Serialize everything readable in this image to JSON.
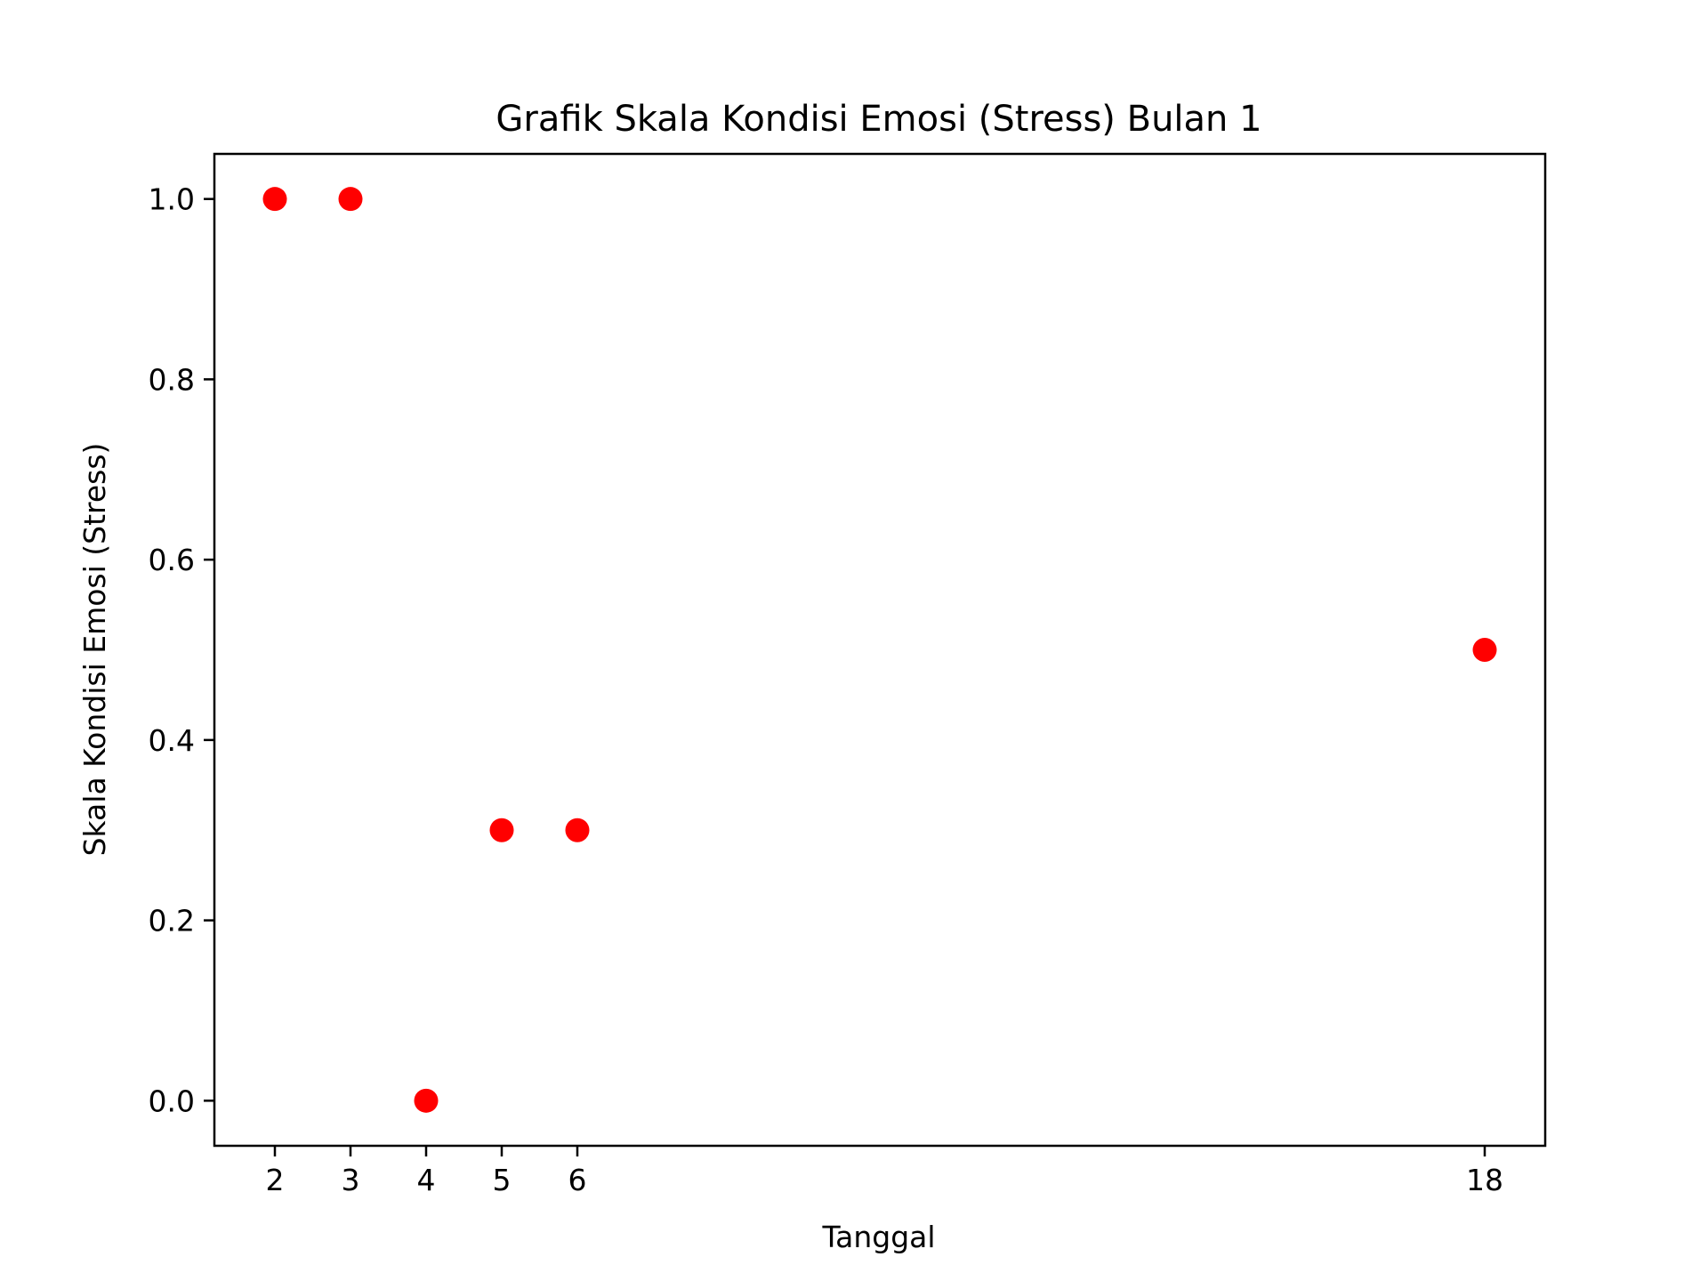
{
  "chart_data": {
    "type": "scatter",
    "title": "Grafik Skala Kondisi Emosi (Stress) Bulan 1",
    "xlabel": "Tanggal",
    "ylabel": "Skala Kondisi Emosi (Stress)",
    "x_ticks": [
      2,
      3,
      4,
      5,
      6,
      18
    ],
    "y_ticks": [
      "0.0",
      "0.2",
      "0.4",
      "0.6",
      "0.8",
      "1.0"
    ],
    "xlim": [
      1.2,
      18.8
    ],
    "ylim": [
      -0.05,
      1.05
    ],
    "grid": false,
    "marker_color": "#ff0000",
    "series": [
      {
        "x": [
          2,
          3,
          4,
          5,
          6,
          18
        ],
        "y": [
          1.0,
          1.0,
          0.0,
          0.3,
          0.3,
          0.5
        ]
      }
    ]
  }
}
